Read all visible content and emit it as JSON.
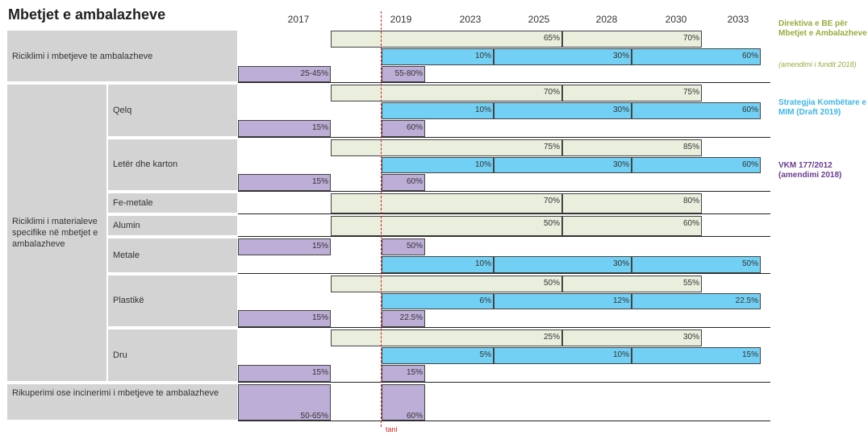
{
  "title": "Mbetjet e ambalazheve",
  "years": [
    "2017",
    "2019",
    "2023",
    "2025",
    "2028",
    "2030",
    "2033"
  ],
  "now_label": "tani",
  "legend": [
    {
      "text": "Direktiva e BE për Mbetjet e Ambalazheve",
      "note": "(amendimi i fundit 2018)",
      "color": "#9aaa3c"
    },
    {
      "text": "Strategjia Kombëtare e MIM (Draft 2019)",
      "color": "#3db6e6"
    },
    {
      "text": "VKM 177/2012 (amendimi 2018)",
      "color": "#6a3d8f"
    }
  ],
  "group_label": "Riciklimi i materialeve specifike në mbetjet e ambalazheve",
  "rows": [
    {
      "label": "Riciklimi i mbetjeve te ambalazheve",
      "lanes": [
        {
          "source": 0,
          "labels": [
            "65%",
            "70%"
          ]
        },
        {
          "source": 1,
          "labels": [
            "10%",
            "30%",
            "60%"
          ]
        },
        {
          "source": 2,
          "labels": [
            "25-45%",
            "55-80%"
          ]
        }
      ]
    },
    {
      "label": "Qelq",
      "lanes": [
        {
          "source": 0,
          "labels": [
            "70%",
            "75%"
          ]
        },
        {
          "source": 1,
          "labels": [
            "10%",
            "30%",
            "60%"
          ]
        },
        {
          "source": 2,
          "labels": [
            "15%",
            "60%"
          ]
        }
      ]
    },
    {
      "label": "Letër dhe karton",
      "lanes": [
        {
          "source": 0,
          "labels": [
            "75%",
            "85%"
          ]
        },
        {
          "source": 1,
          "labels": [
            "10%",
            "30%",
            "60%"
          ]
        },
        {
          "source": 2,
          "labels": [
            "15%",
            "60%"
          ]
        }
      ]
    },
    {
      "label": "Fe-metale",
      "lanes": [
        {
          "source": 0,
          "labels": [
            "70%",
            "80%"
          ]
        }
      ]
    },
    {
      "label": "Alumin",
      "lanes": [
        {
          "source": 0,
          "labels": [
            "50%",
            "60%"
          ]
        }
      ]
    },
    {
      "label": "Metale",
      "lanes": [
        {
          "source": 2,
          "labels": [
            "15%",
            "50%"
          ]
        },
        {
          "source": 1,
          "labels": [
            "10%",
            "30%",
            "50%"
          ]
        }
      ]
    },
    {
      "label": "Plastikë",
      "lanes": [
        {
          "source": 0,
          "labels": [
            "50%",
            "55%"
          ]
        },
        {
          "source": 1,
          "labels": [
            "6%",
            "12%",
            "22.5%"
          ]
        },
        {
          "source": 2,
          "labels": [
            "15%",
            "22.5%"
          ]
        }
      ]
    },
    {
      "label": "Dru",
      "lanes": [
        {
          "source": 0,
          "labels": [
            "25%",
            "30%"
          ]
        },
        {
          "source": 1,
          "labels": [
            "5%",
            "10%",
            "15%"
          ]
        },
        {
          "source": 2,
          "labels": [
            "15%",
            "15%"
          ]
        }
      ]
    },
    {
      "label": "Rikuperimi ose incinerimi i mbetjeve te ambalazheve",
      "lanes": [
        {
          "source": 2,
          "labels": [
            "50-65%",
            "60%"
          ]
        }
      ]
    }
  ]
}
